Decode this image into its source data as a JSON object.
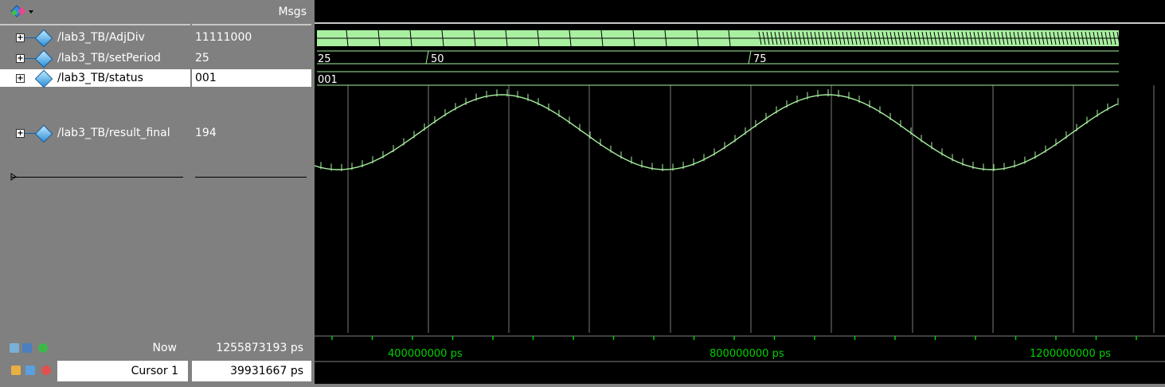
{
  "header": {
    "msgs_label": "Msgs"
  },
  "signals": [
    {
      "name": "/lab3_TB/AdjDiv",
      "value": "11111000"
    },
    {
      "name": "/lab3_TB/setPeriod",
      "value": "25"
    },
    {
      "name": "/lab3_TB/status",
      "value": "001"
    },
    {
      "name": "/lab3_TB/result_final",
      "value": "194"
    }
  ],
  "wave_labels": {
    "setPeriod": [
      "25",
      "50",
      "75"
    ],
    "status": [
      "001"
    ]
  },
  "footer": {
    "now_label": "Now",
    "now_value": "1255873193 ps",
    "cursor_label": "Cursor 1",
    "cursor_value": "39931667 ps"
  },
  "timeline": {
    "ticks": [
      "400000000 ps",
      "800000000 ps",
      "1200000000 ps"
    ]
  },
  "colors": {
    "wave": "#a8f0a0",
    "timeline": "#00d000",
    "pane_bg": "#808080",
    "wave_bg": "#000000"
  }
}
